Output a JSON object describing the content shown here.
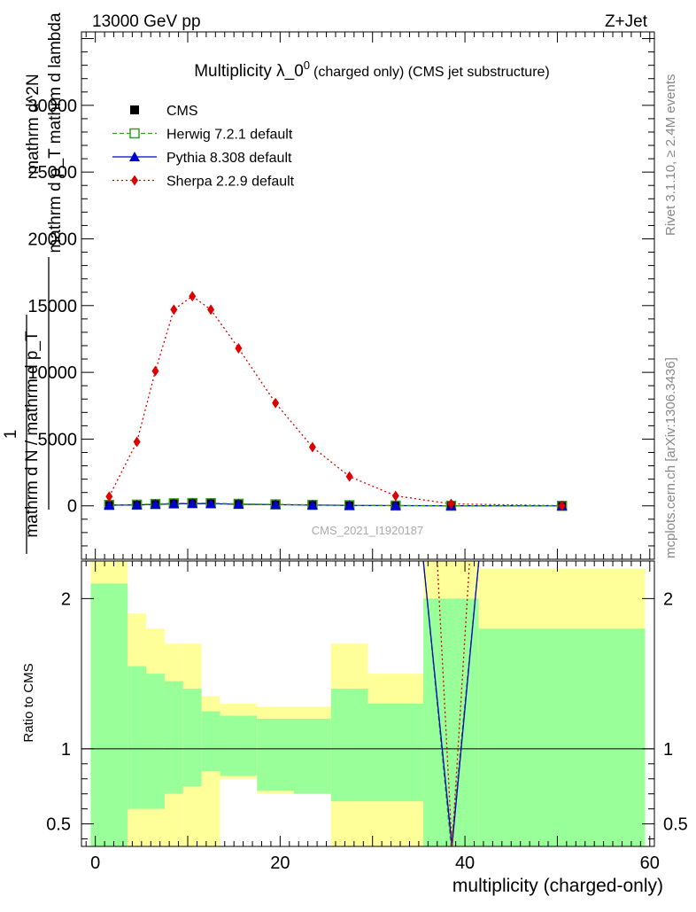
{
  "header": {
    "left": "13000 GeV pp",
    "right": "Z+Jet"
  },
  "side_texts": {
    "rivet": "Rivet 3.1.10, ≥ 2.4M events",
    "mcplots": "mcplots.cern.ch [arXiv:1306.3436]"
  },
  "chart_data": [
    {
      "type": "line",
      "title": "Multiplicity λ_0",
      "title_superscript": "0",
      "subtitle": "(charged only) (CMS jet substructure)",
      "watermark": "CMS_2021_I1920187",
      "ylabel_lines": [
        "1",
        "mathrm d N / mathrm d p_T",
        "mathrm d^2N",
        "mathrm d p_T mathrm d lambda"
      ],
      "xlim": [
        -1.5,
        60.5
      ],
      "ylim": [
        -4000,
        35500
      ],
      "xticks": [
        0,
        20,
        40,
        60
      ],
      "yticks": [
        0,
        5000,
        10000,
        15000,
        20000,
        25000,
        30000
      ],
      "ytick_labels": [
        "0",
        "5000",
        "10000",
        "15000",
        "20000",
        "25000",
        "30000"
      ],
      "legend_position": "top-left",
      "series": [
        {
          "name": "CMS",
          "color": "#000000",
          "marker": "square-filled",
          "x": [
            1.5,
            4.5,
            6.5,
            8.5,
            10.5,
            12.5,
            15.5,
            19.5,
            23.5,
            27.5,
            32.5,
            38.5,
            50.5
          ],
          "y": [
            60,
            80,
            120,
            160,
            180,
            170,
            130,
            100,
            70,
            40,
            20,
            5,
            1
          ]
        },
        {
          "name": "Herwig 7.2.1 default",
          "color": "#3a9a1a",
          "marker": "square-open",
          "line": "dashed",
          "x": [
            1.5,
            4.5,
            6.5,
            8.5,
            10.5,
            12.5,
            15.5,
            19.5,
            23.5,
            27.5,
            32.5,
            38.5,
            50.5
          ],
          "y": [
            70,
            90,
            140,
            190,
            210,
            200,
            150,
            110,
            75,
            45,
            22,
            8,
            1
          ]
        },
        {
          "name": "Pythia 8.308 default",
          "color": "#0000cc",
          "marker": "triangle",
          "line": "solid",
          "x": [
            1.5,
            4.5,
            6.5,
            8.5,
            10.5,
            12.5,
            15.5,
            19.5,
            23.5,
            27.5,
            32.5,
            38.5,
            50.5
          ],
          "y": [
            50,
            70,
            110,
            150,
            170,
            160,
            120,
            90,
            60,
            35,
            18,
            4,
            1
          ]
        },
        {
          "name": "Sherpa 2.2.9 default",
          "color": "#dd0000",
          "marker": "diamond",
          "line": "dotted",
          "x": [
            1.5,
            4.5,
            6.5,
            8.5,
            10.5,
            12.5,
            15.5,
            19.5,
            23.5,
            27.5,
            32.5,
            38.5,
            50.5
          ],
          "y": [
            700,
            4800,
            10100,
            14700,
            15700,
            14700,
            11800,
            7700,
            4400,
            2200,
            750,
            150,
            10
          ]
        }
      ]
    },
    {
      "type": "line",
      "ylabel": "Ratio to CMS",
      "xlabel": "multiplicity (charged-only)",
      "xlim": [
        -1.5,
        60.5
      ],
      "ylim": [
        0.35,
        2.25
      ],
      "xticks": [
        0,
        20,
        40,
        60
      ],
      "xtick_labels": [
        "0",
        "20",
        "40",
        "60"
      ],
      "yticks": [
        0.5,
        1,
        2
      ],
      "ytick_labels": [
        "0.5",
        "1",
        "2"
      ],
      "bands": {
        "edges": [
          -0.5,
          3.5,
          5.5,
          7.5,
          9.5,
          11.5,
          13.5,
          17.5,
          21.5,
          25.5,
          29.5,
          35.5,
          41.5,
          59.5
        ],
        "stat_color": "#99ff99",
        "syst_color": "#ffff99",
        "inner_lo": [
          0.35,
          0.6,
          0.6,
          0.7,
          0.75,
          0.85,
          0.82,
          0.72,
          0.7,
          0.65,
          0.65,
          0.35,
          0.35
        ],
        "inner_hi": [
          2.1,
          1.55,
          1.5,
          1.45,
          1.4,
          1.25,
          1.22,
          1.2,
          1.2,
          1.4,
          1.3,
          2.0,
          1.8
        ],
        "outer_lo": [
          0.35,
          0.35,
          0.35,
          0.35,
          0.35,
          0.35,
          0.8,
          0.7,
          0.7,
          0.35,
          0.35,
          0.35,
          0.35
        ],
        "outer_hi": [
          2.25,
          1.9,
          1.8,
          1.7,
          1.7,
          1.35,
          1.3,
          1.28,
          1.28,
          1.7,
          1.5,
          2.25,
          2.2
        ]
      },
      "series": [
        {
          "name": "Herwig 7.2.1 default",
          "color": "#3a9a1a",
          "line": "dashed",
          "x": [
            35.5,
            38.5,
            41.5
          ],
          "y": [
            2.25,
            0.35,
            2.25
          ]
        },
        {
          "name": "Pythia 8.308 default",
          "color": "#0000cc",
          "line": "solid",
          "x": [
            35.5,
            38.6,
            41.5
          ],
          "y": [
            2.25,
            0.35,
            2.25
          ]
        },
        {
          "name": "Sherpa 2.2.9 default",
          "color": "#dd0000",
          "line": "dotted",
          "x": [
            37.0,
            38.6,
            40.5
          ],
          "y": [
            2.25,
            0.35,
            2.25
          ]
        }
      ]
    }
  ]
}
